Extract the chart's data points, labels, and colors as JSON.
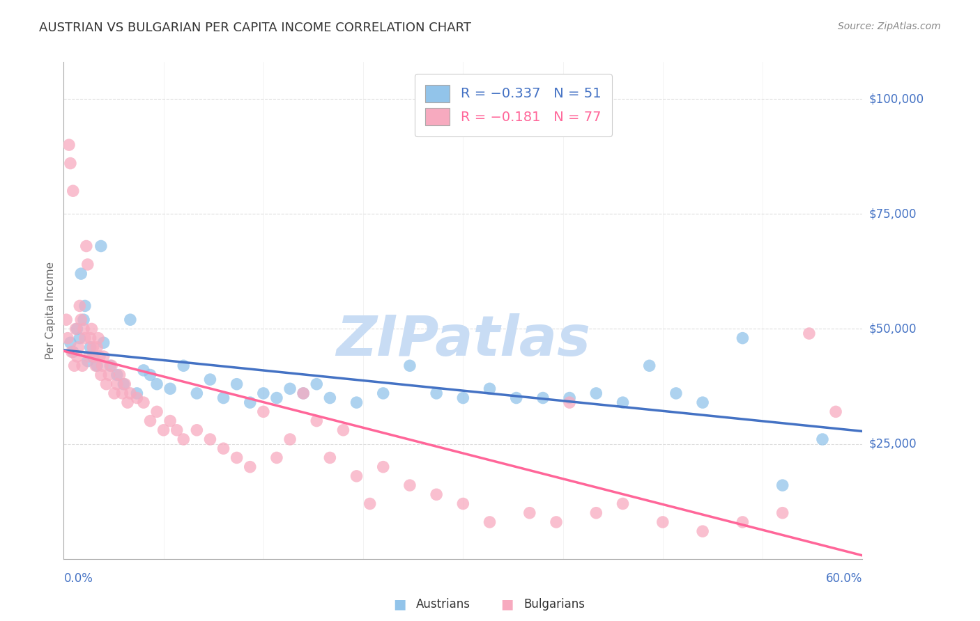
{
  "title": "AUSTRIAN VS BULGARIAN PER CAPITA INCOME CORRELATION CHART",
  "source": "Source: ZipAtlas.com",
  "ylabel": "Per Capita Income",
  "ytick_values": [
    25000,
    50000,
    75000,
    100000
  ],
  "ytick_labels": [
    "$25,000",
    "$50,000",
    "$75,000",
    "$100,000"
  ],
  "xmin": 0.0,
  "xmax": 0.6,
  "ymin": 0,
  "ymax": 108000,
  "legend_line1": "R = −0.337   N = 51",
  "legend_line2": "R = −0.181   N = 77",
  "austrian_color": "#92C4EA",
  "bulgarian_color": "#F7AABF",
  "austrian_line_color": "#4472C4",
  "bulgarian_line_color": "#FF6699",
  "watermark": "ZIPatlas",
  "watermark_color": "#C8DCF4",
  "background_color": "#FFFFFF",
  "title_color": "#333333",
  "axis_tick_color": "#4472C4",
  "grid_color": "#DDDDDD",
  "title_fontsize": 13,
  "source_fontsize": 10,
  "tick_label_fontsize": 12,
  "austrians_x": [
    0.005,
    0.007,
    0.01,
    0.012,
    0.013,
    0.015,
    0.016,
    0.018,
    0.02,
    0.022,
    0.025,
    0.028,
    0.03,
    0.035,
    0.04,
    0.045,
    0.05,
    0.055,
    0.06,
    0.065,
    0.07,
    0.08,
    0.09,
    0.1,
    0.11,
    0.12,
    0.13,
    0.14,
    0.15,
    0.16,
    0.17,
    0.18,
    0.19,
    0.2,
    0.22,
    0.24,
    0.26,
    0.28,
    0.3,
    0.32,
    0.34,
    0.36,
    0.38,
    0.4,
    0.42,
    0.44,
    0.46,
    0.48,
    0.51,
    0.54,
    0.57
  ],
  "austrians_y": [
    47000,
    45000,
    50000,
    48000,
    62000,
    52000,
    55000,
    43000,
    46000,
    44000,
    42000,
    68000,
    47000,
    42000,
    40000,
    38000,
    52000,
    36000,
    41000,
    40000,
    38000,
    37000,
    42000,
    36000,
    39000,
    35000,
    38000,
    34000,
    36000,
    35000,
    37000,
    36000,
    38000,
    35000,
    34000,
    36000,
    42000,
    36000,
    35000,
    37000,
    35000,
    35000,
    35000,
    36000,
    34000,
    42000,
    36000,
    34000,
    48000,
    16000,
    26000
  ],
  "bulgarians_x": [
    0.002,
    0.003,
    0.004,
    0.005,
    0.006,
    0.007,
    0.008,
    0.009,
    0.01,
    0.011,
    0.012,
    0.013,
    0.014,
    0.015,
    0.016,
    0.017,
    0.018,
    0.019,
    0.02,
    0.021,
    0.022,
    0.023,
    0.024,
    0.025,
    0.026,
    0.027,
    0.028,
    0.029,
    0.03,
    0.032,
    0.034,
    0.036,
    0.038,
    0.04,
    0.042,
    0.044,
    0.046,
    0.048,
    0.05,
    0.055,
    0.06,
    0.065,
    0.07,
    0.075,
    0.08,
    0.085,
    0.09,
    0.1,
    0.11,
    0.12,
    0.13,
    0.14,
    0.15,
    0.16,
    0.17,
    0.18,
    0.19,
    0.2,
    0.21,
    0.22,
    0.23,
    0.24,
    0.26,
    0.28,
    0.3,
    0.32,
    0.35,
    0.37,
    0.38,
    0.4,
    0.42,
    0.45,
    0.48,
    0.51,
    0.54,
    0.56,
    0.58
  ],
  "bulgarians_y": [
    52000,
    48000,
    90000,
    86000,
    45000,
    80000,
    42000,
    50000,
    44000,
    46000,
    55000,
    52000,
    42000,
    50000,
    48000,
    68000,
    64000,
    44000,
    48000,
    50000,
    46000,
    44000,
    42000,
    46000,
    48000,
    44000,
    40000,
    42000,
    44000,
    38000,
    40000,
    42000,
    36000,
    38000,
    40000,
    36000,
    38000,
    34000,
    36000,
    35000,
    34000,
    30000,
    32000,
    28000,
    30000,
    28000,
    26000,
    28000,
    26000,
    24000,
    22000,
    20000,
    32000,
    22000,
    26000,
    36000,
    30000,
    22000,
    28000,
    18000,
    12000,
    20000,
    16000,
    14000,
    12000,
    8000,
    10000,
    8000,
    34000,
    10000,
    12000,
    8000,
    6000,
    8000,
    10000,
    49000,
    32000
  ]
}
